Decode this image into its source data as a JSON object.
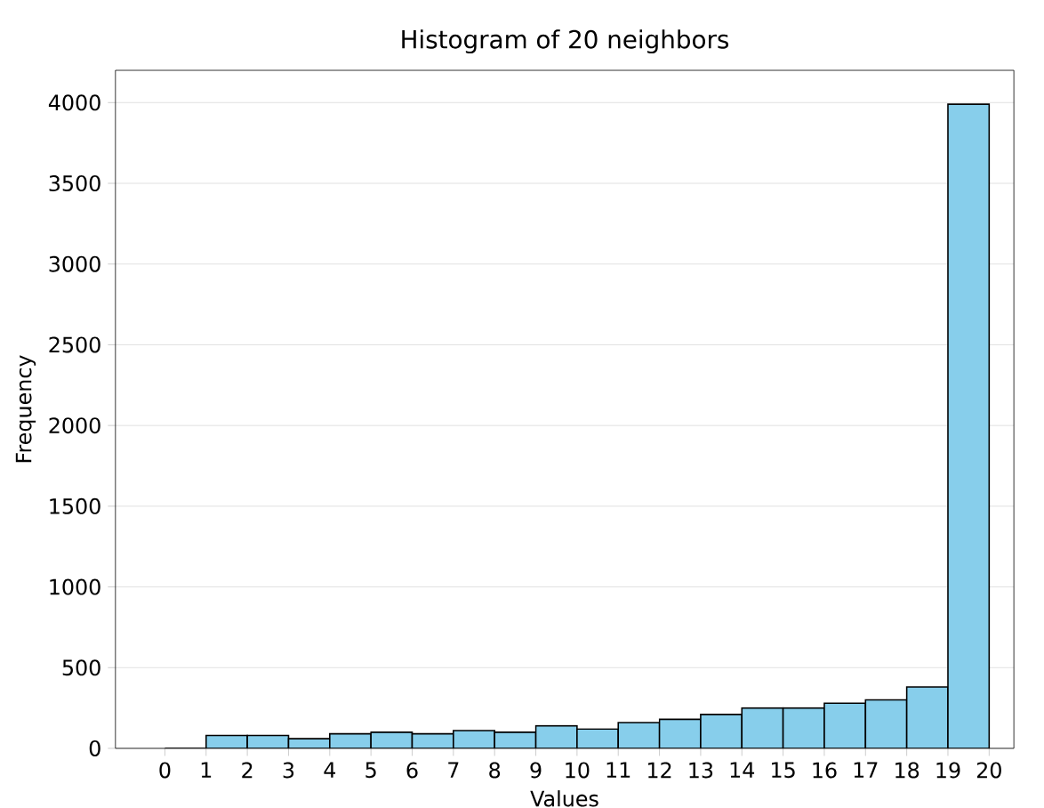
{
  "chart_data": {
    "type": "histogram",
    "title": "Histogram of 20 neighbors",
    "xlabel": "Values",
    "ylabel": "Frequency",
    "bins": [
      0,
      1,
      2,
      3,
      4,
      5,
      6,
      7,
      8,
      9,
      10,
      11,
      12,
      13,
      14,
      15,
      16,
      17,
      18,
      19,
      20
    ],
    "values": [
      0,
      80,
      80,
      60,
      90,
      100,
      90,
      110,
      100,
      140,
      120,
      160,
      180,
      210,
      250,
      250,
      280,
      300,
      380,
      3990
    ],
    "color": "#87ceeb",
    "xlim": [
      -1.2,
      20.6
    ],
    "ylim": [
      0,
      4200
    ],
    "xticks": [
      0,
      1,
      2,
      3,
      4,
      5,
      6,
      7,
      8,
      9,
      10,
      11,
      12,
      13,
      14,
      15,
      16,
      17,
      18,
      19,
      20
    ],
    "yticks": [
      0,
      500,
      1000,
      1500,
      2000,
      2500,
      3000,
      3500,
      4000
    ],
    "grid": "y"
  }
}
